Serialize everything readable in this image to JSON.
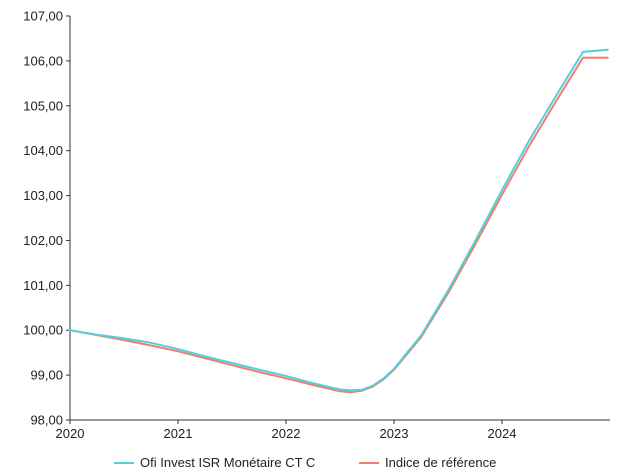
{
  "chart_data": {
    "type": "line",
    "title": "",
    "xlabel": "",
    "ylabel": "",
    "xlim": [
      2020,
      2025.0
    ],
    "ylim": [
      98,
      107
    ],
    "x_ticks": [
      2020,
      2021,
      2022,
      2023,
      2024
    ],
    "x_tick_labels": [
      "2020",
      "2021",
      "2022",
      "2023",
      "2024"
    ],
    "y_ticks": [
      98,
      99,
      100,
      101,
      102,
      103,
      104,
      105,
      106,
      107
    ],
    "y_tick_labels": [
      "98,00",
      "99,00",
      "100,00",
      "101,00",
      "102,00",
      "103,00",
      "104,00",
      "105,00",
      "106,00",
      "107,00"
    ],
    "grid": false,
    "legend_position": "bottom",
    "series": [
      {
        "name": "Ofi Invest ISR Monétaire CT C",
        "color": "#4fd1dc",
        "x": [
          2020.0,
          2020.25,
          2020.5,
          2020.75,
          2021.0,
          2021.25,
          2021.5,
          2021.75,
          2022.0,
          2022.25,
          2022.5,
          2022.6,
          2022.7,
          2022.8,
          2022.9,
          2023.0,
          2023.25,
          2023.5,
          2023.75,
          2024.0,
          2024.25,
          2024.5,
          2024.75,
          2024.98
        ],
        "values": [
          100.0,
          99.9,
          99.82,
          99.72,
          99.58,
          99.42,
          99.27,
          99.12,
          98.98,
          98.82,
          98.68,
          98.66,
          98.67,
          98.76,
          98.92,
          99.14,
          99.88,
          100.88,
          101.98,
          103.12,
          104.22,
          105.22,
          106.2,
          106.25
        ]
      },
      {
        "name": "Indice de référence",
        "color": "#f07f72",
        "x": [
          2020.0,
          2020.25,
          2020.5,
          2020.75,
          2021.0,
          2021.25,
          2021.5,
          2021.75,
          2022.0,
          2022.25,
          2022.5,
          2022.6,
          2022.7,
          2022.8,
          2022.9,
          2023.0,
          2023.25,
          2023.5,
          2023.75,
          2024.0,
          2024.25,
          2024.5,
          2024.75,
          2024.98
        ],
        "values": [
          100.0,
          99.89,
          99.78,
          99.66,
          99.53,
          99.38,
          99.22,
          99.07,
          98.93,
          98.78,
          98.64,
          98.62,
          98.65,
          98.74,
          98.9,
          99.12,
          99.84,
          100.82,
          101.9,
          103.02,
          104.1,
          105.1,
          106.07,
          106.07
        ]
      }
    ]
  }
}
